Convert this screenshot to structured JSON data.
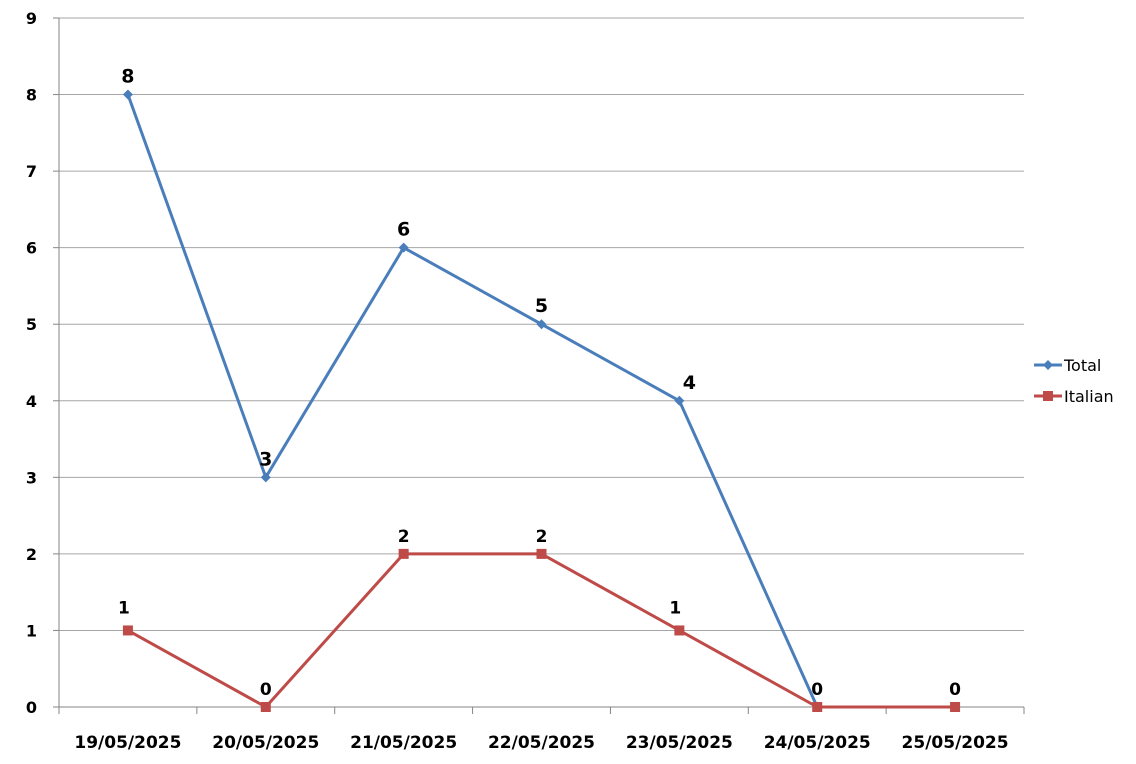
{
  "chart_data": {
    "type": "line",
    "categories": [
      "19/05/2025",
      "20/05/2025",
      "21/05/2025",
      "22/05/2025",
      "23/05/2025",
      "24/05/2025",
      "25/05/2025"
    ],
    "ylim": [
      0,
      9
    ],
    "yticks": [
      "0",
      "1",
      "2",
      "3",
      "4",
      "5",
      "6",
      "7",
      "8",
      "9"
    ],
    "grid": true,
    "legend_position": "right",
    "series": [
      {
        "name": "Total",
        "color": "#4a7ebb",
        "marker": "diamond",
        "values": [
          8,
          3,
          6,
          5,
          4,
          0,
          null
        ],
        "data_labels": [
          "8",
          "3",
          "6",
          "5",
          "4",
          "",
          ""
        ]
      },
      {
        "name": "Italian",
        "color": "#be4b48",
        "marker": "square",
        "values": [
          1,
          0,
          2,
          2,
          1,
          0,
          0
        ],
        "data_labels": [
          "1",
          "0",
          "2",
          "2",
          "1",
          "0",
          "0"
        ]
      }
    ]
  }
}
